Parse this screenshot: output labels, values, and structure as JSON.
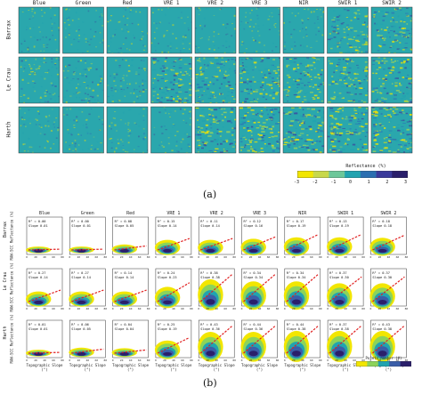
{
  "panel_a": {
    "bands": [
      "Blue",
      "Green",
      "Red",
      "VRE 1",
      "VRE 2",
      "VRE 3",
      "NIR",
      "SWIR 1",
      "SWIR 2"
    ],
    "sites": [
      "Barrax",
      "Le Crau",
      "Harth"
    ],
    "colorbar": {
      "label": "Reflectance (%)",
      "ticks": [
        "-3",
        "-2",
        "-1",
        "0",
        "1",
        "2",
        "3"
      ],
      "colors": [
        "#f2e600",
        "#c8d84a",
        "#6cc79a",
        "#21a3b0",
        "#2b6fb1",
        "#3a3a9b",
        "#2a1f6b"
      ]
    },
    "caption": "(a)"
  },
  "panel_b": {
    "bands": [
      "Blue",
      "Green",
      "Red",
      "VRE 1",
      "VRE 2",
      "VRE 3",
      "NIR",
      "SWIR 1",
      "SWIR 2"
    ],
    "sites": [
      "Barrax",
      "Le Crau",
      "Harth"
    ],
    "ylabel": "RAW-SCC Reflectance (%)",
    "xlabel": "Topographic Slope (°)",
    "x_ticks": [
      "0",
      "20",
      "40",
      "60",
      "80"
    ],
    "colorbar": {
      "label": "Points number (#)",
      "colors": [
        "#f2e600",
        "#8cd35a",
        "#21a3b0",
        "#3a5da8",
        "#2a1f6b"
      ]
    },
    "caption": "(b)",
    "stats": [
      [
        {
          "r2": "R² = 0.00",
          "slope": "Slope 0.01"
        },
        {
          "r2": "R² = 0.00",
          "slope": "Slope 0.01"
        },
        {
          "r2": "R² = 0.08",
          "slope": "Slope 0.05"
        },
        {
          "r2": "R² = 0.15",
          "slope": "Slope 0.14"
        },
        {
          "r2": "R² = 0.11",
          "slope": "Slope 0.14"
        },
        {
          "r2": "R² = 0.12",
          "slope": "Slope 0.16"
        },
        {
          "r2": "R² = 0.17",
          "slope": "Slope 0.19"
        },
        {
          "r2": "R² = 0.13",
          "slope": "Slope 0.19"
        },
        {
          "r2": "R² = 0.18",
          "slope": "Slope 0.18"
        }
      ],
      [
        {
          "r2": "R² = 0.27",
          "slope": "Slope 0.14"
        },
        {
          "r2": "R² = 0.27",
          "slope": "Slope 0.14"
        },
        {
          "r2": "R² = 0.14",
          "slope": "Slope 0.14"
        },
        {
          "r2": "R² = 0.24",
          "slope": "Slope 0.23"
        },
        {
          "r2": "R² = 0.38",
          "slope": "Slope 0.38"
        },
        {
          "r2": "R² = 0.34",
          "slope": "Slope 0.34"
        },
        {
          "r2": "R² = 0.34",
          "slope": "Slope 0.34"
        },
        {
          "r2": "R² = 0.37",
          "slope": "Slope 0.30"
        },
        {
          "r2": "R² = 0.37",
          "slope": "Slope 0.30"
        }
      ],
      [
        {
          "r2": "R² = 0.01",
          "slope": "Slope 0.01"
        },
        {
          "r2": "R² = 0.06",
          "slope": "Slope 0.05"
        },
        {
          "r2": "R² = 0.04",
          "slope": "Slope 0.04"
        },
        {
          "r2": "R² = 0.25",
          "slope": "Slope 0.19"
        },
        {
          "r2": "R² = 0.43",
          "slope": "Slope 0.36"
        },
        {
          "r2": "R² = 0.44",
          "slope": "Slope 0.36"
        },
        {
          "r2": "R² = 0.44",
          "slope": "Slope 0.38"
        },
        {
          "r2": "R² = 0.37",
          "slope": "Slope 0.38"
        },
        {
          "r2": "R² = 0.43",
          "slope": "Slope 0.38"
        }
      ]
    ],
    "regression_slope": [
      [
        0.01,
        0.01,
        0.05,
        0.14,
        0.14,
        0.16,
        0.19,
        0.19,
        0.18
      ],
      [
        0.14,
        0.14,
        0.14,
        0.23,
        0.38,
        0.34,
        0.34,
        0.3,
        0.3
      ],
      [
        0.01,
        0.05,
        0.04,
        0.19,
        0.36,
        0.36,
        0.38,
        0.38,
        0.38
      ]
    ]
  }
}
